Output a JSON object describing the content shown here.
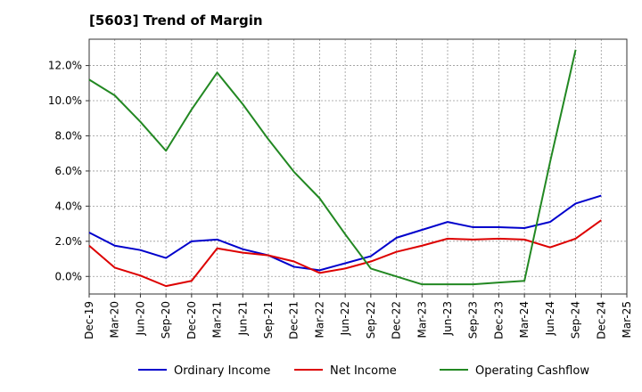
{
  "chart_data": {
    "type": "line",
    "title": "[5603]  Trend of Margin",
    "xlabel": "",
    "ylabel": "",
    "categories": [
      "Dec-19",
      "Mar-20",
      "Jun-20",
      "Sep-20",
      "Dec-20",
      "Mar-21",
      "Jun-21",
      "Sep-21",
      "Dec-21",
      "Mar-22",
      "Jun-22",
      "Sep-22",
      "Dec-22",
      "Mar-23",
      "Jun-23",
      "Sep-23",
      "Dec-23",
      "Mar-24",
      "Jun-24",
      "Sep-24",
      "Dec-24",
      "Mar-25"
    ],
    "y_ticks": [
      "0.0%",
      "2.0%",
      "4.0%",
      "6.0%",
      "8.0%",
      "10.0%",
      "12.0%"
    ],
    "ylim": [
      -1.0,
      13.5
    ],
    "grid": true,
    "legend_position": "bottom",
    "series": [
      {
        "name": "Ordinary Income",
        "color": "#0000cc",
        "values": [
          2.5,
          1.75,
          1.5,
          1.05,
          2.0,
          2.1,
          1.55,
          1.2,
          0.55,
          0.35,
          0.75,
          1.15,
          2.2,
          2.65,
          3.1,
          2.8,
          2.8,
          2.75,
          3.1,
          4.15,
          4.6,
          null
        ]
      },
      {
        "name": "Net Income",
        "color": "#dd0000",
        "values": [
          1.75,
          0.5,
          0.05,
          -0.55,
          -0.25,
          1.6,
          1.35,
          1.2,
          0.85,
          0.2,
          0.45,
          0.85,
          1.4,
          1.75,
          2.15,
          2.1,
          2.15,
          2.1,
          1.65,
          2.15,
          3.2,
          null
        ]
      },
      {
        "name": "Operating Cashflow",
        "color": "#228822",
        "values": [
          11.2,
          10.3,
          8.8,
          7.15,
          9.5,
          11.6,
          9.8,
          7.8,
          5.95,
          4.45,
          2.4,
          0.45,
          0.0,
          -0.45,
          -0.45,
          -0.45,
          -0.35,
          -0.25,
          6.5,
          12.9,
          null,
          null
        ]
      }
    ]
  }
}
